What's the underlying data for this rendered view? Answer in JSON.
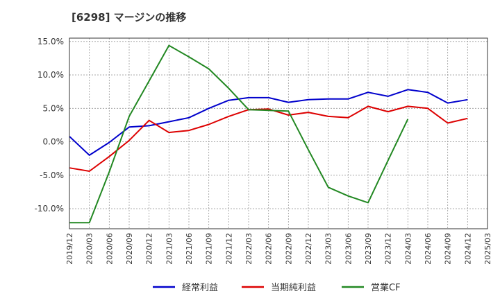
{
  "chart_data": {
    "type": "line",
    "title": "[6298]  マージンの推移",
    "xlabel": "",
    "ylabel": "",
    "categories": [
      "2019/12",
      "2020/03",
      "2020/06",
      "2020/09",
      "2020/12",
      "2021/03",
      "2021/06",
      "2021/09",
      "2021/12",
      "2022/03",
      "2022/06",
      "2022/09",
      "2022/12",
      "2023/03",
      "2023/06",
      "2023/09",
      "2023/12",
      "2024/03",
      "2024/06",
      "2024/09",
      "2024/12",
      "2025/03"
    ],
    "yticks": [
      "15.0%",
      "10.0%",
      "5.0%",
      "0.0%",
      "-5.0%",
      "-10.0%"
    ],
    "ytick_values": [
      15,
      10,
      5,
      0,
      -5,
      -10
    ],
    "ylim": [
      -13,
      15.5
    ],
    "grid": true,
    "legend_position": "bottom",
    "series": [
      {
        "name": "経常利益",
        "color": "#0000cc",
        "values": [
          0.8,
          -2.0,
          -0.1,
          2.2,
          2.4,
          3.0,
          3.6,
          5.0,
          6.2,
          6.6,
          6.6,
          5.9,
          6.3,
          6.4,
          6.4,
          7.4,
          6.8,
          7.8,
          7.4,
          5.8,
          6.3,
          null
        ]
      },
      {
        "name": "当期純利益",
        "color": "#dd0000",
        "values": [
          -3.9,
          -4.4,
          -2.2,
          0.2,
          3.2,
          1.4,
          1.7,
          2.6,
          3.8,
          4.8,
          4.9,
          4.0,
          4.4,
          3.8,
          3.6,
          5.3,
          4.5,
          5.3,
          5.0,
          2.8,
          3.5,
          null
        ]
      },
      {
        "name": "営業CF",
        "color": "#228822",
        "values": [
          -12.1,
          -12.1,
          -4.5,
          3.8,
          9.1,
          14.4,
          12.7,
          10.9,
          8.0,
          4.8,
          4.7,
          4.6,
          -1.2,
          -6.8,
          -8.1,
          -9.1,
          -2.8,
          3.4,
          null,
          null,
          null,
          null
        ]
      }
    ]
  }
}
